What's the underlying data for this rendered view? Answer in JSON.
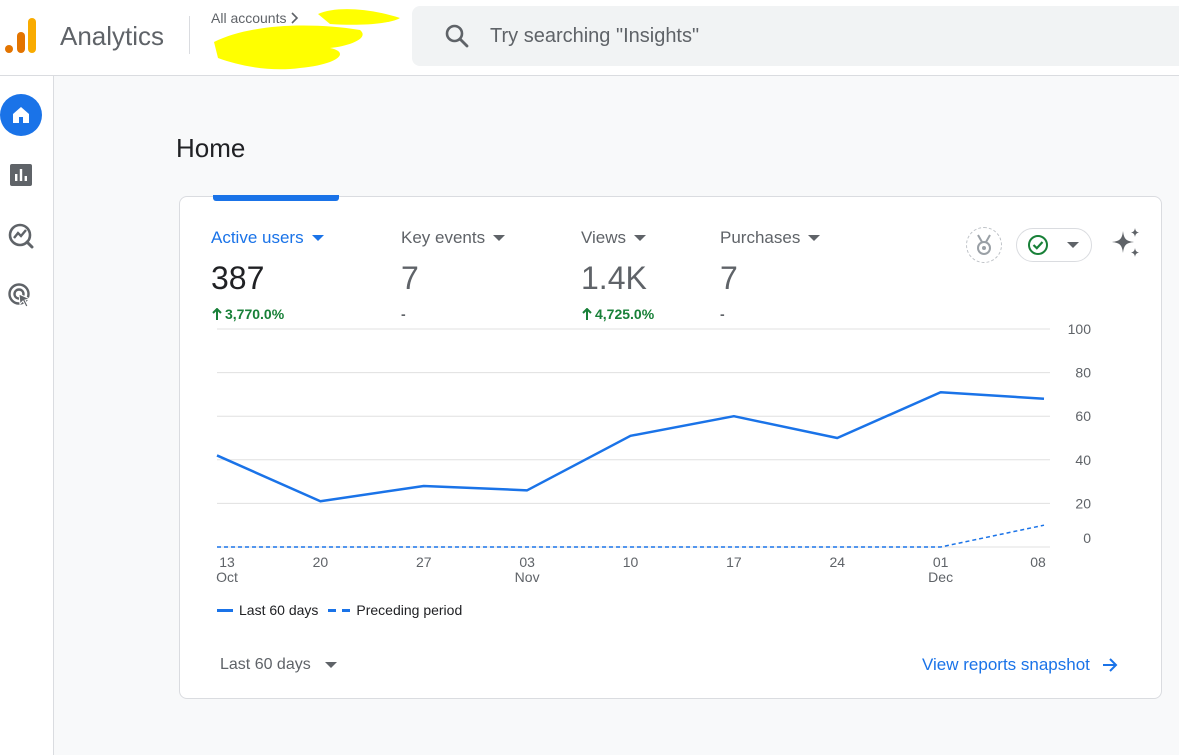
{
  "header": {
    "app_title": "Analytics",
    "breadcrumb_root": "All accounts",
    "search_placeholder": "Try searching \"Insights\""
  },
  "nav": {
    "items": [
      {
        "icon": "home-icon",
        "active": true
      },
      {
        "icon": "reports-icon",
        "active": false
      },
      {
        "icon": "explore-icon",
        "active": false
      },
      {
        "icon": "advertising-icon",
        "active": false
      }
    ]
  },
  "page": {
    "title": "Home"
  },
  "card": {
    "metrics": [
      {
        "label": "Active users",
        "value": "387",
        "delta": "3,770.0%",
        "trend": "up",
        "active": true
      },
      {
        "label": "Key events",
        "value": "7",
        "delta": "-",
        "trend": "none",
        "active": false
      },
      {
        "label": "Views",
        "value": "1.4K",
        "delta": "4,725.0%",
        "trend": "up",
        "active": false
      },
      {
        "label": "Purchases",
        "value": "7",
        "delta": "-",
        "trend": "none",
        "active": false
      }
    ],
    "legend": {
      "current": "Last 60 days",
      "previous": "Preceding period"
    },
    "range_label": "Last 60 days",
    "link_label": "View reports snapshot"
  },
  "colors": {
    "accent": "#1a73e8",
    "positive": "#188038",
    "logo_orange": "#f9ab00",
    "logo_dark_orange": "#e37400"
  },
  "chart_data": {
    "type": "line",
    "x": [
      "13 Oct",
      "20",
      "27",
      "03 Nov",
      "10",
      "17",
      "24",
      "01 Dec",
      "08"
    ],
    "tick_labels": [
      {
        "top": "13",
        "bottom": "Oct"
      },
      {
        "top": "20",
        "bottom": ""
      },
      {
        "top": "27",
        "bottom": ""
      },
      {
        "top": "03",
        "bottom": "Nov"
      },
      {
        "top": "10",
        "bottom": ""
      },
      {
        "top": "17",
        "bottom": ""
      },
      {
        "top": "24",
        "bottom": ""
      },
      {
        "top": "01",
        "bottom": "Dec"
      },
      {
        "top": "08",
        "bottom": ""
      }
    ],
    "series": [
      {
        "name": "Last 60 days",
        "style": "solid",
        "values": [
          42,
          21,
          28,
          26,
          51,
          60,
          50,
          71,
          68
        ]
      },
      {
        "name": "Preceding period",
        "style": "dashed",
        "values": [
          0,
          0,
          0,
          0,
          0,
          0,
          0,
          0,
          10
        ]
      }
    ],
    "y_ticks": [
      0,
      20,
      40,
      60,
      80,
      100
    ],
    "ylim": [
      0,
      100
    ],
    "grid": true,
    "legend_position": "bottom-left"
  }
}
